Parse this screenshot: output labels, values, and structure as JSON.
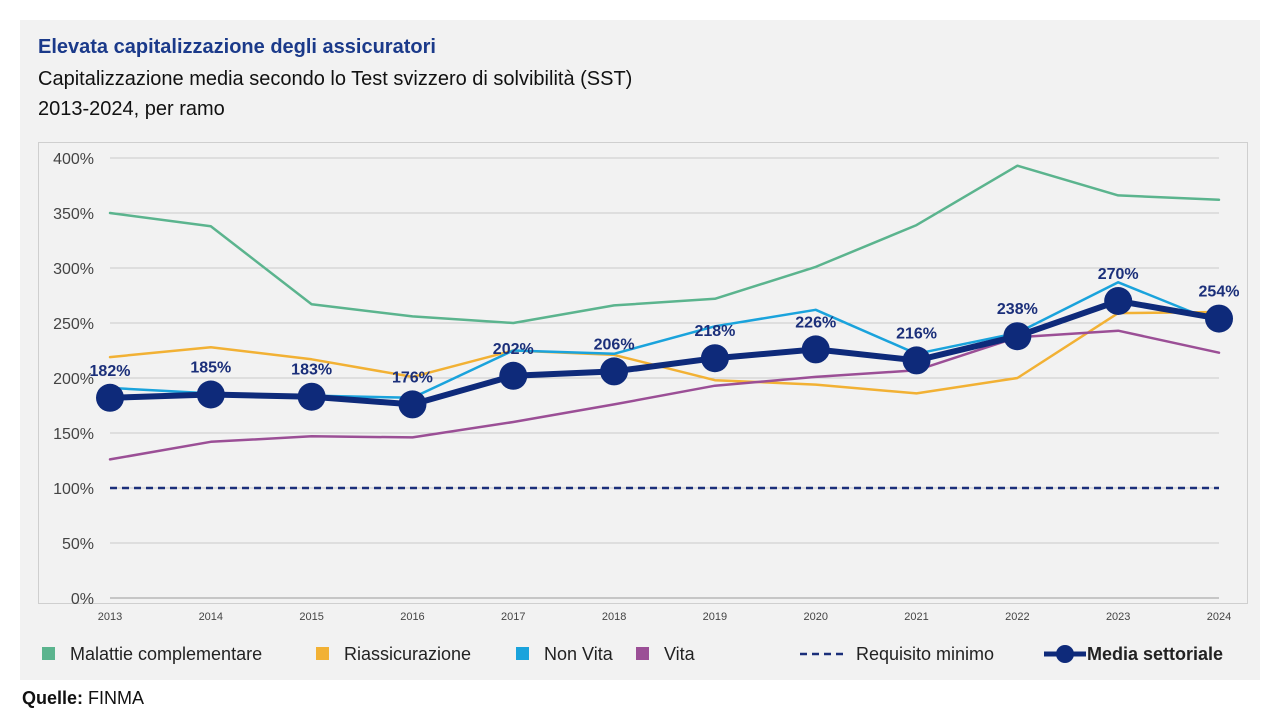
{
  "title": "Elevata capitalizzazione degli assicuratori",
  "subtitle_line1": "Capitalizzazione media secondo lo Test svizzero di solvibilità (SST)",
  "subtitle_line2": "2013-2024, per ramo",
  "source_label": "Quelle:",
  "source_value": "FINMA",
  "chart_data": {
    "type": "line",
    "title": "Elevata capitalizzazione degli assicuratori",
    "xlabel": "",
    "ylabel": "",
    "x": [
      "2013",
      "2014",
      "2015",
      "2016",
      "2017",
      "2018",
      "2019",
      "2020",
      "2021",
      "2022",
      "2023",
      "2024"
    ],
    "ylim": [
      0,
      400
    ],
    "yticks": [
      0,
      50,
      100,
      150,
      200,
      250,
      300,
      350,
      400
    ],
    "ytick_labels": [
      "0%",
      "50%",
      "100%",
      "150%",
      "200%",
      "250%",
      "300%",
      "350%",
      "400%"
    ],
    "grid": true,
    "legend_position": "bottom",
    "series": [
      {
        "name": "Malattie complementare",
        "color": "#5bb48e",
        "style": "solid",
        "values": [
          350,
          338,
          267,
          256,
          250,
          266,
          272,
          301,
          339,
          393,
          366,
          362
        ]
      },
      {
        "name": "Riassicurazione",
        "color": "#f2b134",
        "style": "solid",
        "values": [
          219,
          228,
          217,
          201,
          225,
          221,
          198,
          194,
          186,
          200,
          259,
          260
        ]
      },
      {
        "name": "Non Vita",
        "color": "#1aa3dc",
        "style": "solid",
        "values": [
          191,
          186,
          184,
          182,
          225,
          222,
          247,
          262,
          222,
          241,
          287,
          250
        ]
      },
      {
        "name": "Vita",
        "color": "#9b4f96",
        "style": "solid",
        "values": [
          126,
          142,
          147,
          146,
          160,
          176,
          193,
          201,
          207,
          237,
          243,
          223
        ]
      },
      {
        "name": "Requisito minimo",
        "color": "#1b2f7a",
        "style": "dashed",
        "values": [
          100,
          100,
          100,
          100,
          100,
          100,
          100,
          100,
          100,
          100,
          100,
          100
        ]
      },
      {
        "name": "Media settoriale",
        "color": "#0e2a7a",
        "style": "bold-markers",
        "values": [
          182,
          185,
          183,
          176,
          202,
          206,
          218,
          226,
          216,
          238,
          270,
          254
        ],
        "labels": [
          "182%",
          "185%",
          "183%",
          "176%",
          "202%",
          "206%",
          "218%",
          "226%",
          "216%",
          "238%",
          "270%",
          "254%"
        ]
      }
    ]
  }
}
